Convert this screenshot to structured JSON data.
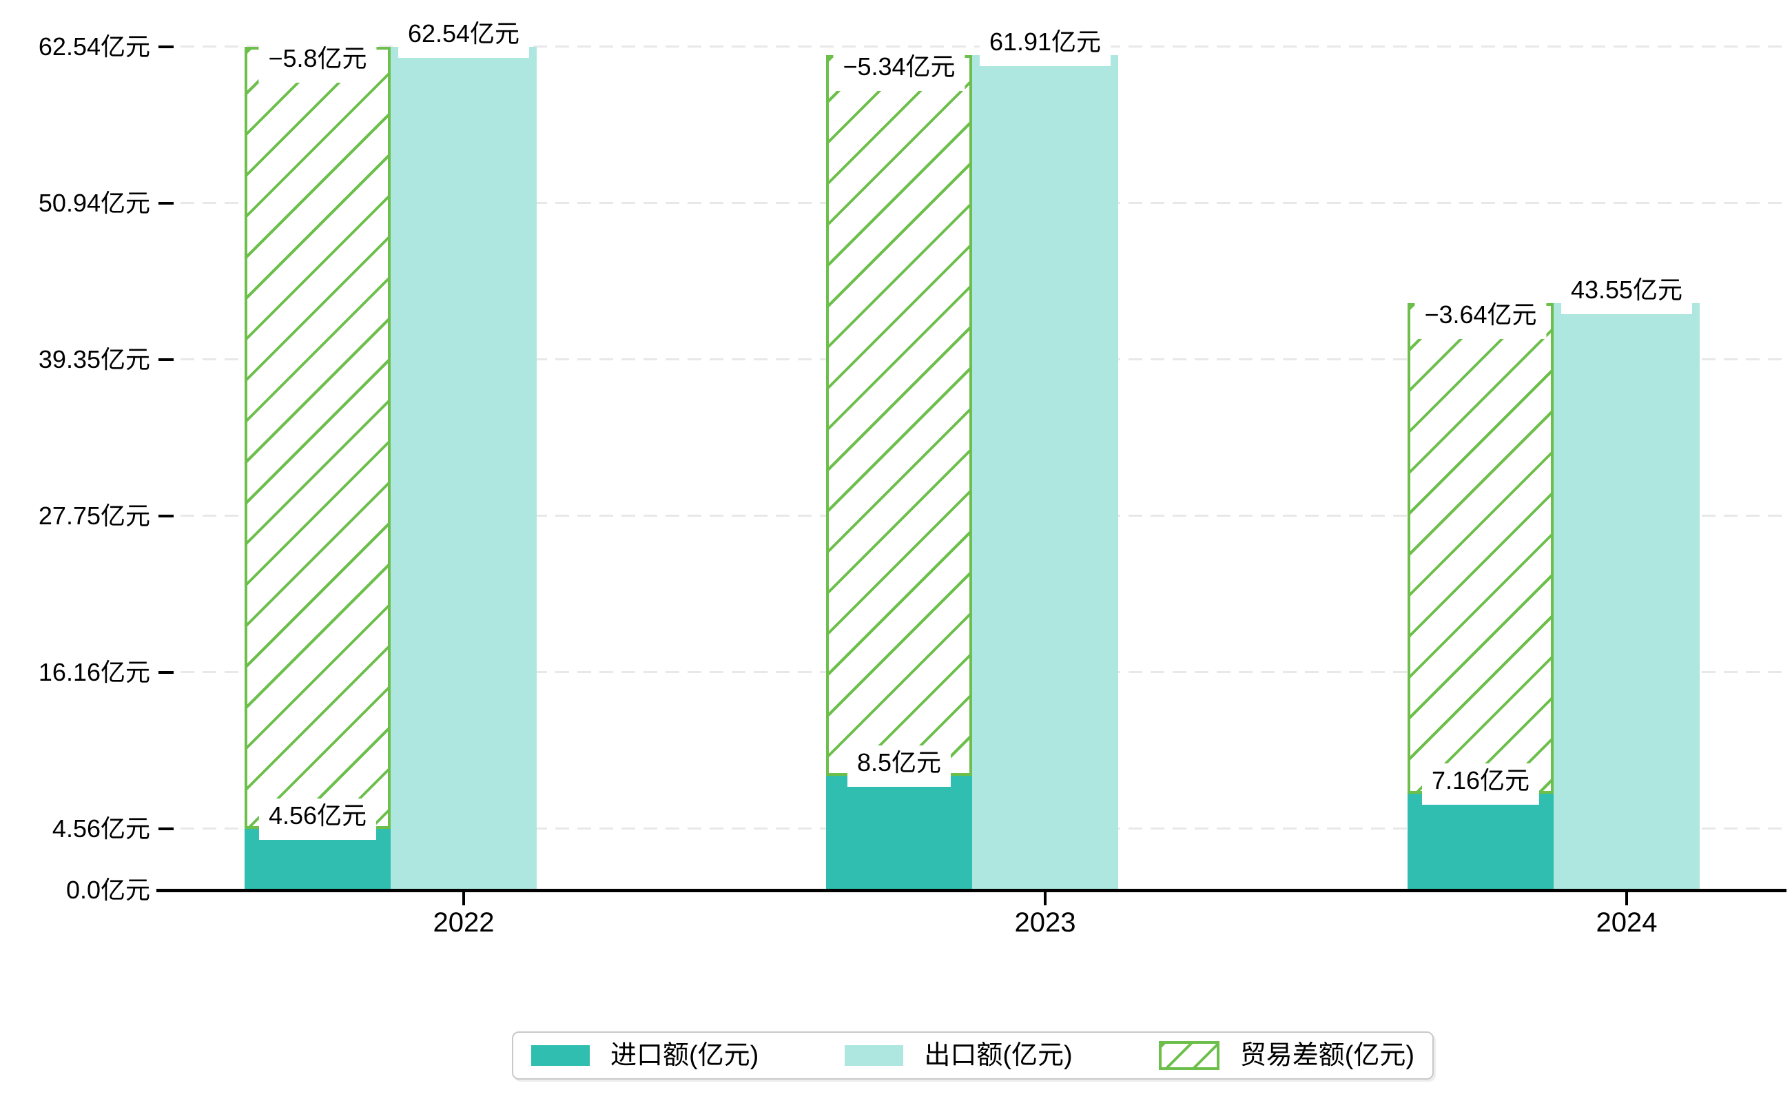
{
  "chart_data": {
    "type": "bar",
    "title": "",
    "categories": [
      "2022",
      "2023",
      "2024"
    ],
    "series": [
      {
        "name": "进口额(亿元)",
        "values": [
          4.56,
          8.5,
          7.16
        ],
        "data_labels": [
          "4.56亿元",
          "8.5亿元",
          "7.16亿元"
        ],
        "color": "#2FBEAF",
        "pattern": "solid"
      },
      {
        "name": "出口额(亿元)",
        "values": [
          62.54,
          61.91,
          43.55
        ],
        "data_labels": [
          "62.54亿元",
          "61.91亿元",
          "43.55亿元"
        ],
        "color": "#ADE7E0",
        "pattern": "solid"
      },
      {
        "name": "贸易差额(亿元)",
        "values": [
          -5.8,
          -5.34,
          -3.64
        ],
        "data_labels": [
          "−5.8亿元",
          "−5.34亿元",
          "−3.64亿元"
        ],
        "color": "#6CBF4A",
        "pattern": "diagonal-hatch",
        "bar_drawn_between": [
          "import-top",
          "export-top"
        ]
      }
    ],
    "y_axis": {
      "unit": "亿元",
      "min": 0,
      "max": 62.54,
      "ticks": [
        {
          "value": 0,
          "label": "0.0亿元"
        },
        {
          "value": 4.56,
          "label": "4.56亿元"
        },
        {
          "value": 16.16,
          "label": "16.16亿元"
        },
        {
          "value": 27.75,
          "label": "27.75亿元"
        },
        {
          "value": 39.35,
          "label": "39.35亿元"
        },
        {
          "value": 50.94,
          "label": "50.94亿元"
        },
        {
          "value": 62.54,
          "label": "62.54亿元"
        }
      ]
    },
    "grid": "horizontal-dashed",
    "legend_position": "bottom-center",
    "colors": {
      "grid": "#E8E8E8",
      "axis": "#000000",
      "legend_border": "#C9C9C9",
      "label_background": "#FFFFFF"
    }
  }
}
